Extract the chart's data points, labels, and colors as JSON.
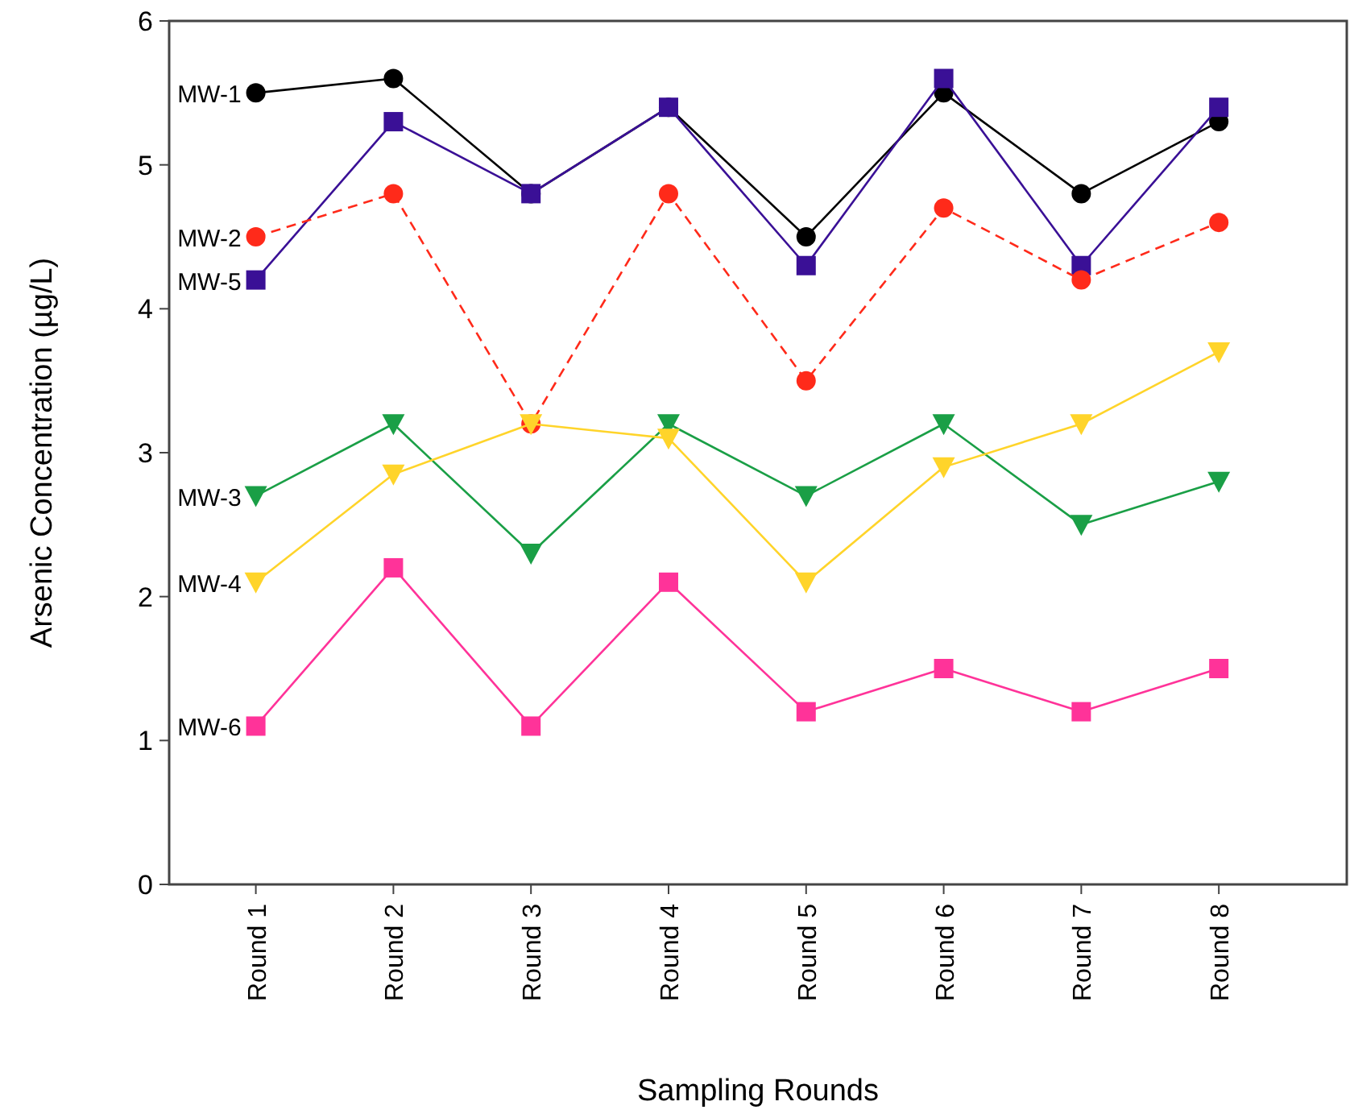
{
  "chart_data": {
    "type": "line",
    "xlabel": "Sampling Rounds",
    "ylabel": "Arsenic Concentration (µg/L)",
    "categories": [
      "Round 1",
      "Round 2",
      "Round 3",
      "Round 4",
      "Round 5",
      "Round 6",
      "Round 7",
      "Round 8"
    ],
    "ylim": [
      0,
      6
    ],
    "yticks": [
      0,
      1,
      2,
      3,
      4,
      5,
      6
    ],
    "grid": false,
    "legend": false,
    "series": [
      {
        "name": "MW-1",
        "color": "#000000",
        "marker": "circle",
        "line_style": "solid",
        "values": [
          5.5,
          5.6,
          4.8,
          5.4,
          4.5,
          5.5,
          4.8,
          5.3
        ]
      },
      {
        "name": "MW-5",
        "color": "#3a1096",
        "marker": "square",
        "line_style": "solid",
        "values": [
          4.2,
          5.3,
          4.8,
          5.4,
          4.3,
          5.6,
          4.3,
          5.4
        ]
      },
      {
        "name": "MW-2",
        "color": "#ff2a1a",
        "marker": "circle",
        "line_style": "dashed",
        "values": [
          4.5,
          4.8,
          3.2,
          4.8,
          3.5,
          4.7,
          4.2,
          4.6
        ]
      },
      {
        "name": "MW-3",
        "color": "#1a9f46",
        "marker": "triangle",
        "line_style": "solid",
        "values": [
          2.7,
          3.2,
          2.3,
          3.2,
          2.7,
          3.2,
          2.5,
          2.8
        ]
      },
      {
        "name": "MW-4",
        "color": "#ffd42a",
        "marker": "triangle",
        "line_style": "solid",
        "values": [
          2.1,
          2.85,
          3.2,
          3.1,
          2.1,
          2.9,
          3.2,
          3.7
        ]
      },
      {
        "name": "MW-6",
        "color": "#ff3399",
        "marker": "square",
        "line_style": "solid",
        "values": [
          1.1,
          2.2,
          1.1,
          2.1,
          1.2,
          1.5,
          1.2,
          1.5
        ]
      }
    ]
  }
}
